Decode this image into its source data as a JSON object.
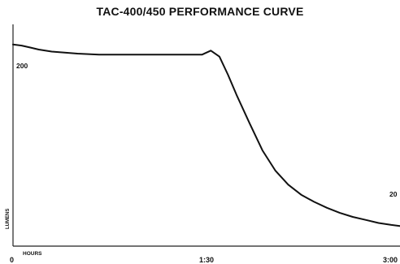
{
  "chart_data": {
    "type": "line",
    "title": "TAC-400/450 PERFORMANCE CURVE",
    "xlabel": "HOURS",
    "ylabel": "LUMENS",
    "x_tick_labels": [
      "0",
      "1:30",
      "3:00"
    ],
    "xlim": [
      0,
      180
    ],
    "ylim": [
      0,
      220
    ],
    "annotations": [
      {
        "text": "200",
        "x": 0,
        "y": 200
      },
      {
        "text": "20",
        "x": 180,
        "y": 20
      }
    ],
    "grid": false,
    "series": [
      {
        "x": [
          0,
          4,
          8,
          12,
          18,
          24,
          30,
          40,
          50,
          60,
          70,
          80,
          88,
          92,
          96,
          100,
          104,
          110,
          116,
          122,
          128,
          134,
          140,
          146,
          152,
          158,
          164,
          170,
          176,
          180
        ],
        "y": [
          200,
          199,
          197,
          195,
          193,
          192,
          191,
          190,
          190,
          190,
          190,
          190,
          190,
          194,
          188,
          170,
          150,
          122,
          95,
          75,
          61,
          51,
          44,
          38,
          33,
          29,
          26,
          23,
          21,
          20
        ]
      }
    ],
    "colors": {
      "line": "#111111",
      "frame": "#222222"
    }
  }
}
